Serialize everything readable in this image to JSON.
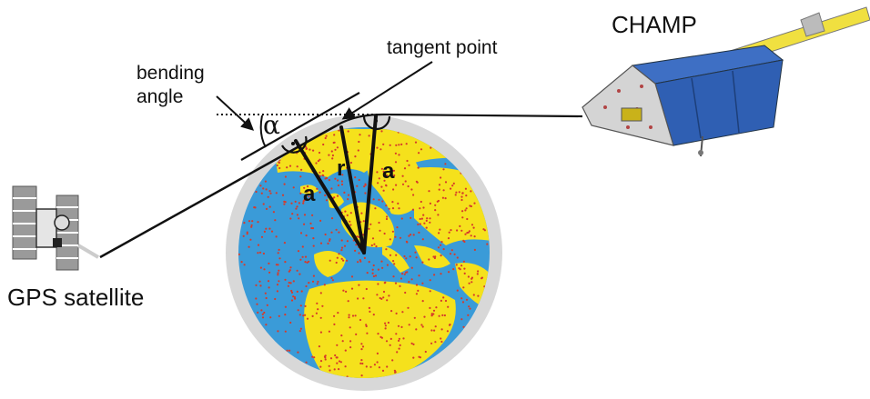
{
  "labels": {
    "champ": "CHAMP",
    "tangent_point": "tangent point",
    "bending_line1": "bending",
    "bending_line2": "angle",
    "alpha": "α",
    "gps": "GPS satellite",
    "a_left": "a",
    "r": "r",
    "a_right": "a"
  },
  "colors": {
    "ocean": "#3a9bd8",
    "land": "#f5e11c",
    "halo": "#d8d8d8",
    "dots": "#d63a2a",
    "satellite_body": "#3e6fc4",
    "satellite_panel": "#f0e040",
    "satellite_frame": "#c9c9c9"
  },
  "icons": {
    "earth": "earth-globe-icon",
    "champ": "champ-satellite-icon",
    "gps": "gps-satellite-icon"
  }
}
